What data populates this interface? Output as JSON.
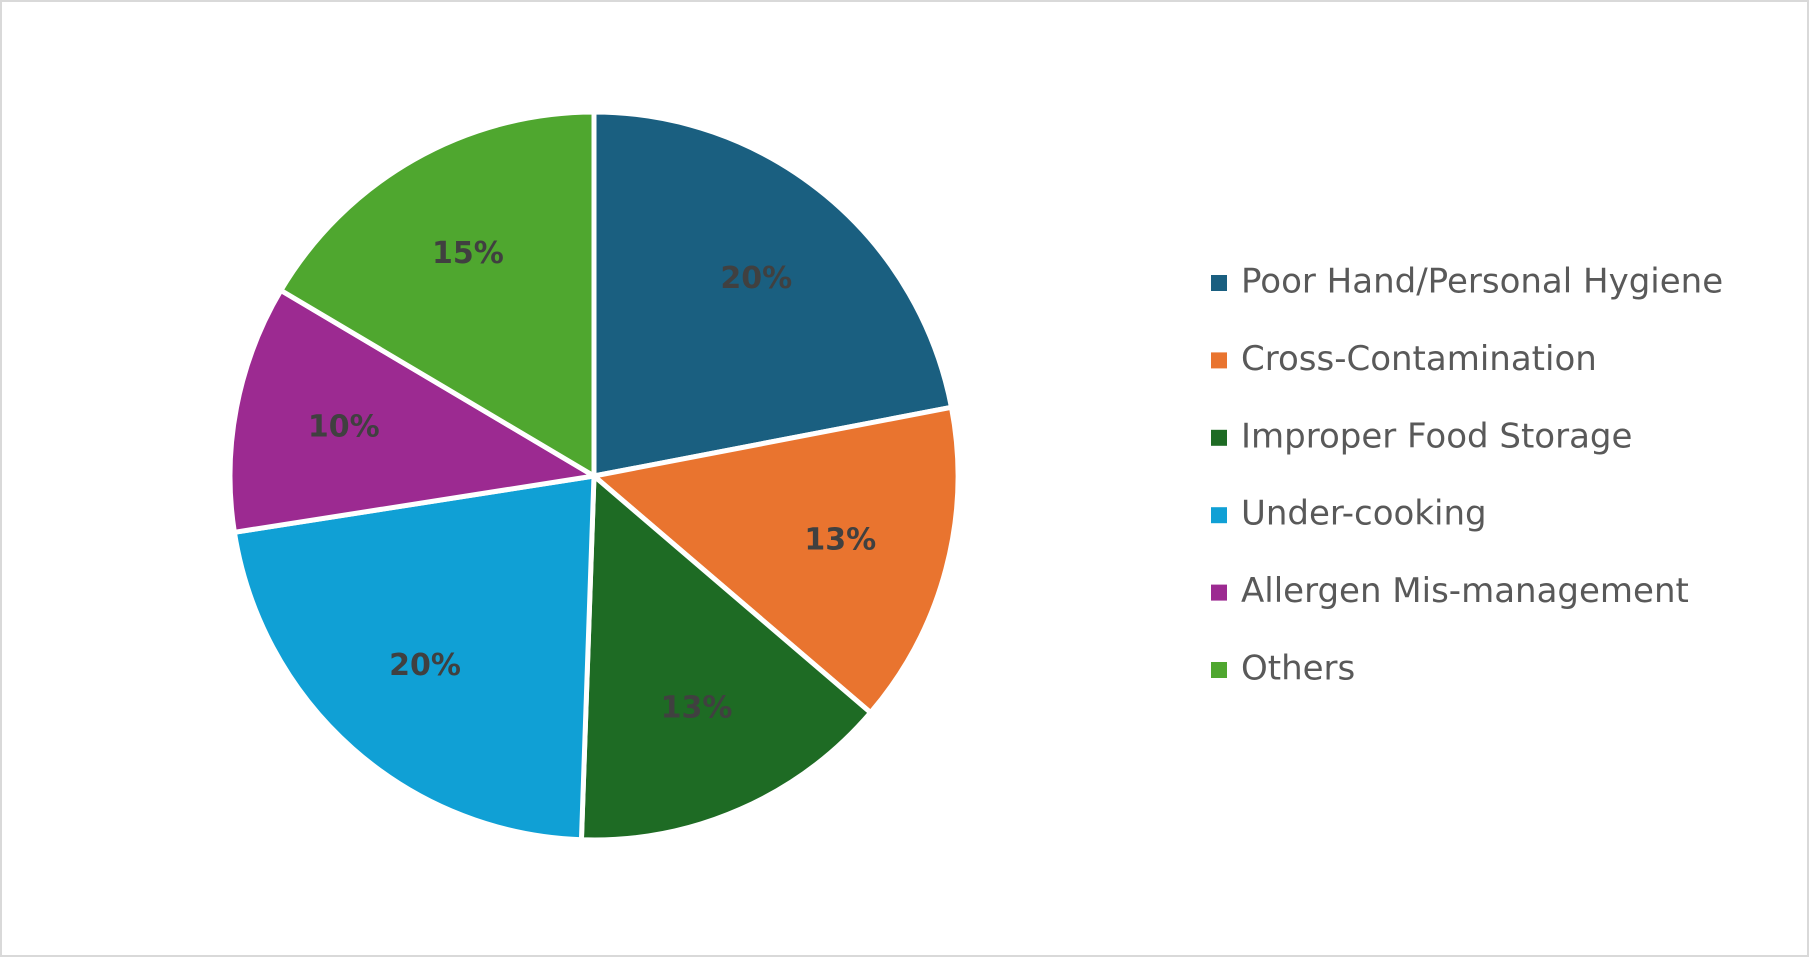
{
  "chart_data": {
    "type": "pie",
    "categories": [
      "Poor Hand/Personal Hygiene",
      "Cross-Contamination",
      "Improper Food Storage",
      "Under-cooking",
      "Allergen Mis-management",
      "Others"
    ],
    "values": [
      20,
      13,
      13,
      20,
      10,
      15
    ],
    "value_labels": [
      "20%",
      "13%",
      "13%",
      "20%",
      "10%",
      "15%"
    ],
    "colors": [
      "#1a5f80",
      "#e9742f",
      "#1e6b24",
      "#10a0d5",
      "#9c2a91",
      "#4fa72f"
    ],
    "legend": "right"
  }
}
